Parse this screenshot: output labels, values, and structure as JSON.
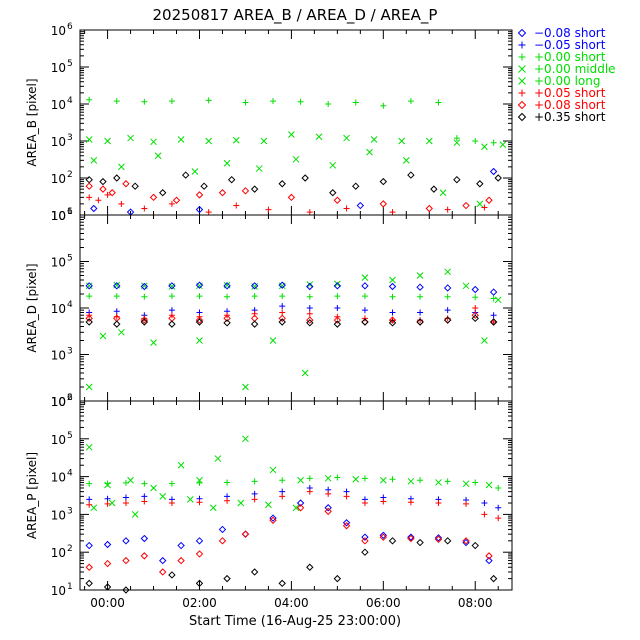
{
  "chart_data": {
    "type": "scatter",
    "title": "20250817 AREA_B  /  AREA_D  /  AREA_P",
    "xlabel": "Start Time (16-Aug-25 23:00:00)",
    "x_unit": "hours since start",
    "x_range": [
      0.4,
      9.8
    ],
    "x_ticks": [
      {
        "value": 1,
        "label": "00:00"
      },
      {
        "value": 3,
        "label": "02:00"
      },
      {
        "value": 5,
        "label": "04:00"
      },
      {
        "value": 7,
        "label": "06:00"
      },
      {
        "value": 9,
        "label": "08:00"
      }
    ],
    "y_scale": "log",
    "y_tick_labels": [
      {
        "exp": 1,
        "label": "10",
        "sup": "1"
      },
      {
        "exp": 2,
        "label": "10",
        "sup": "2"
      },
      {
        "exp": 3,
        "label": "10",
        "sup": "3"
      },
      {
        "exp": 4,
        "label": "10",
        "sup": "4"
      },
      {
        "exp": 5,
        "label": "10",
        "sup": "5"
      },
      {
        "exp": 6,
        "label": "10",
        "sup": "6"
      }
    ],
    "panels": [
      {
        "key": "B",
        "ylabel": "AREA_B [pixel]",
        "ylim": [
          10,
          1000000
        ]
      },
      {
        "key": "D",
        "ylabel": "AREA_D [pixel]",
        "ylim": [
          100,
          1000000
        ]
      },
      {
        "key": "P",
        "ylabel": "AREA_P [pixel]",
        "ylim": [
          10,
          1000000
        ]
      }
    ],
    "legend": {
      "placement": "top-right outside",
      "entries": [
        {
          "label": "−0.08 short",
          "color": "#0000ff",
          "symbol": "diamond"
        },
        {
          "label": "−0.05 short",
          "color": "#0000ff",
          "symbol": "plus"
        },
        {
          "label": "+0.00 short",
          "color": "#00e000",
          "symbol": "plus"
        },
        {
          "label": "+0.00 middle",
          "color": "#00e000",
          "symbol": "cross"
        },
        {
          "label": "+0.00 long",
          "color": "#00e000",
          "symbol": "cross"
        },
        {
          "label": "+0.05 short",
          "color": "#ff0000",
          "symbol": "plus"
        },
        {
          "label": "+0.08 short",
          "color": "#ff0000",
          "symbol": "diamond"
        },
        {
          "label": "+0.35 short",
          "color": "#000000",
          "symbol": "diamond"
        }
      ]
    },
    "series": [
      {
        "panel": "B",
        "legend_index": 2,
        "symbol": "plus",
        "color": "#00e000",
        "x": [
          0.6,
          1.2,
          1.8,
          2.4,
          3.2,
          4.0,
          4.6,
          5.2,
          5.8,
          6.4,
          7.0,
          7.6,
          8.2,
          8.6,
          9.0,
          9.4
        ],
        "y": [
          13000,
          12000,
          11500,
          12000,
          12500,
          11000,
          12000,
          11500,
          10000,
          11000,
          9000,
          12000,
          11000,
          1200,
          1000,
          900
        ]
      },
      {
        "panel": "B",
        "legend_index": 3,
        "symbol": "cross",
        "color": "#00e000",
        "x": [
          0.6,
          1.0,
          1.5,
          2.0,
          2.6,
          3.2,
          3.8,
          4.4,
          5.0,
          5.6,
          6.2,
          6.8,
          7.4,
          8.0,
          8.6,
          9.2,
          9.6
        ],
        "y": [
          1100,
          1000,
          1200,
          950,
          1100,
          1000,
          1050,
          1000,
          1500,
          1300,
          1200,
          1100,
          1000,
          1000,
          900,
          700,
          800
        ]
      },
      {
        "panel": "B",
        "legend_index": 4,
        "symbol": "cross",
        "color": "#00e000",
        "x": [
          0.7,
          1.3,
          2.1,
          2.9,
          3.6,
          4.3,
          5.1,
          5.9,
          6.7,
          7.5,
          8.3,
          9.1
        ],
        "y": [
          300,
          200,
          400,
          150,
          250,
          180,
          320,
          220,
          500,
          300,
          40,
          20
        ]
      },
      {
        "panel": "B",
        "legend_index": 7,
        "symbol": "diamond",
        "color": "#000000",
        "x": [
          0.6,
          0.9,
          1.2,
          1.6,
          2.2,
          2.7,
          3.1,
          3.7,
          4.2,
          4.8,
          5.3,
          5.9,
          6.4,
          7.0,
          7.6,
          8.1,
          8.6,
          9.1,
          9.5
        ],
        "y": [
          90,
          80,
          100,
          60,
          40,
          120,
          60,
          90,
          50,
          70,
          100,
          40,
          60,
          80,
          120,
          50,
          90,
          70,
          100
        ]
      },
      {
        "panel": "B",
        "legend_index": 6,
        "symbol": "diamond",
        "color": "#ff0000",
        "x": [
          0.6,
          0.9,
          1.1,
          1.4,
          2.0,
          2.5,
          3.0,
          3.5,
          4.0,
          5.0,
          6.0,
          7.0,
          8.0,
          8.8,
          9.3
        ],
        "y": [
          60,
          50,
          40,
          70,
          30,
          25,
          35,
          40,
          45,
          30,
          25,
          20,
          15,
          18,
          25
        ]
      },
      {
        "panel": "B",
        "legend_index": 5,
        "symbol": "plus",
        "color": "#ff0000",
        "x": [
          0.6,
          0.8,
          1.0,
          1.3,
          1.8,
          2.4,
          3.2,
          3.8,
          4.5,
          5.4,
          6.2,
          7.2,
          8.4,
          9.2
        ],
        "y": [
          30,
          25,
          35,
          20,
          15,
          20,
          12,
          18,
          14,
          12,
          15,
          12,
          14,
          16
        ]
      },
      {
        "panel": "B",
        "legend_index": 0,
        "symbol": "diamond",
        "color": "#0000ff",
        "x": [
          0.7,
          1.5,
          3.0,
          6.5,
          9.4
        ],
        "y": [
          15,
          12,
          14,
          18,
          150
        ]
      },
      {
        "panel": "D",
        "legend_index": 2,
        "symbol": "plus",
        "color": "#00e000",
        "x": [
          0.6,
          1.2,
          1.8,
          2.4,
          3.0,
          3.6,
          4.2,
          4.8,
          5.4,
          6.0,
          6.6,
          7.2,
          7.8,
          8.4,
          9.0,
          9.4
        ],
        "y": [
          18000,
          18000,
          17500,
          18000,
          18000,
          17500,
          18000,
          18000,
          17500,
          18000,
          18000,
          17500,
          17500,
          17500,
          17000,
          16000
        ]
      },
      {
        "panel": "D",
        "legend_index": 3,
        "symbol": "cross",
        "color": "#00e000",
        "x": [
          0.6,
          1.2,
          1.8,
          2.4,
          3.0,
          3.6,
          4.2,
          4.8,
          5.4,
          6.0,
          6.6,
          7.2,
          7.8,
          8.4,
          8.8,
          9.2,
          9.5
        ],
        "y": [
          30000,
          31000,
          30000,
          29000,
          30000,
          31000,
          29000,
          30000,
          32000,
          33000,
          45000,
          40000,
          50000,
          60000,
          30000,
          2000,
          15000
        ]
      },
      {
        "panel": "D",
        "legend_index": 4,
        "symbol": "cross",
        "color": "#00e000",
        "x": [
          0.6,
          0.9,
          1.3,
          2.0,
          3.0,
          4.0,
          4.6,
          5.3
        ],
        "y": [
          200,
          2500,
          3000,
          1800,
          2000,
          200,
          2000,
          400
        ]
      },
      {
        "panel": "D",
        "legend_index": 0,
        "symbol": "diamond",
        "color": "#0000ff",
        "x": [
          0.6,
          1.2,
          1.8,
          2.4,
          3.0,
          3.6,
          4.2,
          4.8,
          5.4,
          6.0,
          6.6,
          7.2,
          7.8,
          8.4,
          9.0,
          9.4
        ],
        "y": [
          30000,
          30000,
          29000,
          30000,
          31000,
          30000,
          30000,
          31000,
          29000,
          30000,
          30000,
          29000,
          28000,
          27000,
          25000,
          22000
        ]
      },
      {
        "panel": "D",
        "legend_index": 1,
        "symbol": "plus",
        "color": "#0000ff",
        "x": [
          0.6,
          1.2,
          1.8,
          2.4,
          3.0,
          3.6,
          4.2,
          4.8,
          5.4,
          6.0,
          6.6,
          7.2,
          7.8,
          8.4,
          9.0,
          9.4
        ],
        "y": [
          8000,
          8500,
          7000,
          9000,
          8000,
          8500,
          9000,
          11000,
          10000,
          10000,
          9000,
          8000,
          8000,
          9000,
          8000,
          7000
        ]
      },
      {
        "panel": "D",
        "legend_index": 5,
        "symbol": "plus",
        "color": "#ff0000",
        "x": [
          0.6,
          1.2,
          1.8,
          2.4,
          3.0,
          3.6,
          4.2,
          4.8,
          5.4,
          6.0,
          6.6,
          7.2,
          7.8,
          8.4,
          9.0,
          9.4
        ],
        "y": [
          7000,
          6500,
          6000,
          7000,
          6500,
          7000,
          7500,
          8000,
          7500,
          6500,
          6000,
          5500,
          5500,
          6000,
          10000,
          5000
        ]
      },
      {
        "panel": "D",
        "legend_index": 6,
        "symbol": "diamond",
        "color": "#ff0000",
        "x": [
          0.6,
          1.2,
          1.8,
          2.4,
          3.0,
          3.6,
          4.2,
          4.8,
          5.4,
          6.0,
          6.6,
          7.2,
          7.8,
          8.4,
          9.0,
          9.4
        ],
        "y": [
          6000,
          6000,
          5500,
          6000,
          5500,
          6000,
          6000,
          6000,
          5500,
          5500,
          5000,
          5500,
          5000,
          5500,
          7000,
          5000
        ]
      },
      {
        "panel": "D",
        "legend_index": 7,
        "symbol": "diamond",
        "color": "#000000",
        "x": [
          0.6,
          1.2,
          1.8,
          2.4,
          3.0,
          3.6,
          4.2,
          4.8,
          5.4,
          6.0,
          6.6,
          7.2,
          7.8,
          8.4,
          9.0,
          9.4
        ],
        "y": [
          5000,
          4500,
          5000,
          4500,
          5000,
          4800,
          4500,
          5000,
          4800,
          4500,
          5000,
          4800,
          5000,
          5500,
          6000,
          5000
        ]
      },
      {
        "panel": "P",
        "legend_index": 2,
        "symbol": "plus",
        "color": "#00e000",
        "x": [
          0.6,
          1.0,
          1.4,
          1.8,
          2.4,
          3.0,
          3.6,
          4.2,
          4.8,
          5.4,
          6.0,
          6.6,
          7.2,
          7.8,
          8.4,
          9.0,
          9.5
        ],
        "y": [
          6500,
          6500,
          6800,
          6500,
          6500,
          6800,
          7000,
          7500,
          8000,
          9000,
          9500,
          9000,
          8500,
          8000,
          7500,
          7000,
          5000
        ]
      },
      {
        "panel": "P",
        "legend_index": 3,
        "symbol": "cross",
        "color": "#00e000",
        "x": [
          0.6,
          1.0,
          1.5,
          2.0,
          2.6,
          3.0,
          3.4,
          4.0,
          4.6,
          5.2,
          5.8,
          6.4,
          7.0,
          7.6,
          8.2,
          8.8,
          9.3
        ],
        "y": [
          60000,
          6000,
          8000,
          5000,
          20000,
          8000,
          30000,
          100000,
          15000,
          8000,
          9000,
          8500,
          8000,
          7500,
          7000,
          6500,
          6000
        ]
      },
      {
        "panel": "P",
        "legend_index": 4,
        "symbol": "cross",
        "color": "#00e000",
        "x": [
          0.7,
          1.1,
          1.6,
          2.2,
          2.8,
          3.3,
          3.9,
          4.5,
          5.1
        ],
        "y": [
          1500,
          2000,
          1000,
          3000,
          2500,
          1500,
          2000,
          1800,
          1500
        ]
      },
      {
        "panel": "P",
        "legend_index": 1,
        "symbol": "plus",
        "color": "#0000ff",
        "x": [
          0.6,
          1.0,
          1.4,
          1.8,
          2.4,
          3.0,
          3.6,
          4.2,
          4.8,
          5.4,
          5.8,
          6.2,
          6.6,
          7.0,
          7.6,
          8.2,
          8.8,
          9.2,
          9.5
        ],
        "y": [
          2500,
          2600,
          2800,
          3000,
          2500,
          2600,
          3000,
          3500,
          4000,
          5000,
          4500,
          4000,
          2500,
          2800,
          2600,
          2500,
          2400,
          2000,
          1500
        ]
      },
      {
        "panel": "P",
        "legend_index": 5,
        "symbol": "plus",
        "color": "#ff0000",
        "x": [
          0.6,
          1.0,
          1.4,
          1.8,
          2.4,
          3.0,
          3.6,
          4.2,
          4.8,
          5.4,
          5.8,
          6.2,
          6.6,
          7.0,
          7.6,
          8.2,
          8.8,
          9.2,
          9.5
        ],
        "y": [
          1800,
          1900,
          2000,
          2200,
          2000,
          2100,
          2300,
          2500,
          3000,
          4000,
          3500,
          3000,
          2000,
          2200,
          2100,
          2000,
          1900,
          1000,
          800
        ]
      },
      {
        "panel": "P",
        "legend_index": 0,
        "symbol": "diamond",
        "color": "#0000ff",
        "x": [
          0.6,
          1.0,
          1.4,
          1.8,
          2.2,
          2.6,
          3.0,
          3.5,
          4.0,
          4.6,
          5.2,
          5.8,
          6.2,
          6.6,
          7.0,
          7.6,
          8.2,
          8.8,
          9.3
        ],
        "y": [
          150,
          160,
          200,
          230,
          60,
          150,
          200,
          400,
          300,
          800,
          2000,
          1500,
          600,
          250,
          280,
          250,
          240,
          180,
          60
        ]
      },
      {
        "panel": "P",
        "legend_index": 6,
        "symbol": "diamond",
        "color": "#ff0000",
        "x": [
          0.6,
          1.0,
          1.4,
          1.8,
          2.2,
          2.6,
          3.0,
          3.5,
          4.0,
          4.6,
          5.2,
          5.8,
          6.2,
          6.6,
          7.0,
          7.6,
          8.2,
          8.8,
          9.3
        ],
        "y": [
          40,
          50,
          60,
          80,
          30,
          60,
          90,
          200,
          300,
          700,
          1500,
          1200,
          500,
          200,
          250,
          230,
          220,
          200,
          80
        ]
      },
      {
        "panel": "P",
        "legend_index": 7,
        "symbol": "diamond",
        "color": "#000000",
        "x": [
          0.6,
          1.0,
          1.4,
          1.8,
          2.4,
          3.0,
          3.6,
          4.2,
          4.8,
          5.4,
          6.0,
          6.6,
          7.2,
          7.8,
          8.4,
          9.0,
          9.4
        ],
        "y": [
          15,
          12,
          10,
          8,
          25,
          15,
          20,
          30,
          15,
          40,
          20,
          100,
          200,
          180,
          200,
          150,
          20
        ]
      }
    ]
  }
}
